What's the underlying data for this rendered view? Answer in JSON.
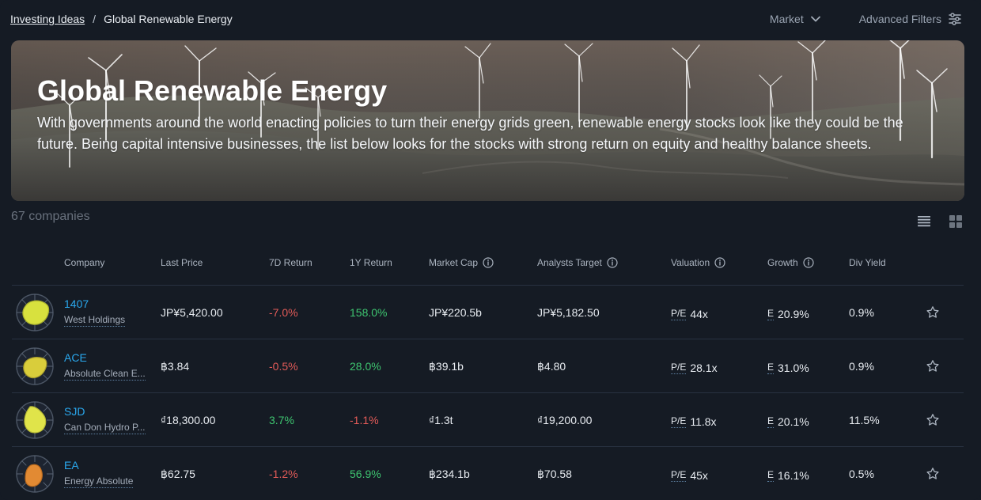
{
  "breadcrumb": {
    "parent": "Investing Ideas",
    "separator": "/",
    "current": "Global Renewable Energy"
  },
  "top_actions": {
    "market_label": "Market",
    "advanced_filters_label": "Advanced Filters",
    "market_icon": "chevron-down-icon",
    "filters_icon": "sliders-icon"
  },
  "hero": {
    "title": "Global Renewable Energy",
    "description": "With governments around the world enacting policies to turn their energy grids green, renewable energy stocks look like they could be the future. Being capital intensive businesses, the list below looks for the stocks with strong return on equity and healthy balance sheets."
  },
  "summary": {
    "count_text": "67 companies"
  },
  "view_controls": {
    "list_icon": "list-view-icon",
    "grid_icon": "grid-view-icon"
  },
  "table": {
    "headers": {
      "company": "Company",
      "last_price": "Last Price",
      "return_7d": "7D Return",
      "return_1y": "1Y Return",
      "market_cap": "Market Cap",
      "analysts_target": "Analysts Target",
      "valuation": "Valuation",
      "growth": "Growth",
      "div_yield": "Div Yield"
    },
    "rows": [
      {
        "ticker": "1407",
        "company_name": "West Holdings",
        "last_price": "JP¥5,420.00",
        "return_7d": "-7.0%",
        "return_1y": "158.0%",
        "market_cap": "JP¥220.5b",
        "analysts_target": "JP¥5,182.50",
        "valuation_label": "P/E",
        "valuation_value": "44x",
        "growth_label": "E",
        "growth_value": "20.9%",
        "div_yield": "0.9%",
        "logo_fill": "#d8e13e",
        "star_icon": "star-icon"
      },
      {
        "ticker": "ACE",
        "company_name": "Absolute Clean E...",
        "last_price": "฿3.84",
        "return_7d": "-0.5%",
        "return_1y": "28.0%",
        "market_cap": "฿39.1b",
        "analysts_target": "฿4.80",
        "valuation_label": "P/E",
        "valuation_value": "28.1x",
        "growth_label": "E",
        "growth_value": "31.0%",
        "div_yield": "0.9%",
        "logo_fill": "#d9cd3b",
        "star_icon": "star-icon"
      },
      {
        "ticker": "SJD",
        "company_name": "Can Don Hydro P...",
        "last_price": "₫18,300.00",
        "return_7d": "3.7%",
        "return_1y": "-1.1%",
        "market_cap": "₫1.3t",
        "analysts_target": "₫19,200.00",
        "valuation_label": "P/E",
        "valuation_value": "11.8x",
        "growth_label": "E",
        "growth_value": "20.1%",
        "div_yield": "11.5%",
        "logo_fill": "#e0e44a",
        "star_icon": "star-icon"
      },
      {
        "ticker": "EA",
        "company_name": "Energy Absolute",
        "last_price": "฿62.75",
        "return_7d": "-1.2%",
        "return_1y": "56.9%",
        "market_cap": "฿234.1b",
        "analysts_target": "฿70.58",
        "valuation_label": "P/E",
        "valuation_value": "45x",
        "growth_label": "E",
        "growth_value": "16.1%",
        "div_yield": "0.5%",
        "logo_fill": "#e28a33",
        "star_icon": "star-icon"
      }
    ]
  }
}
